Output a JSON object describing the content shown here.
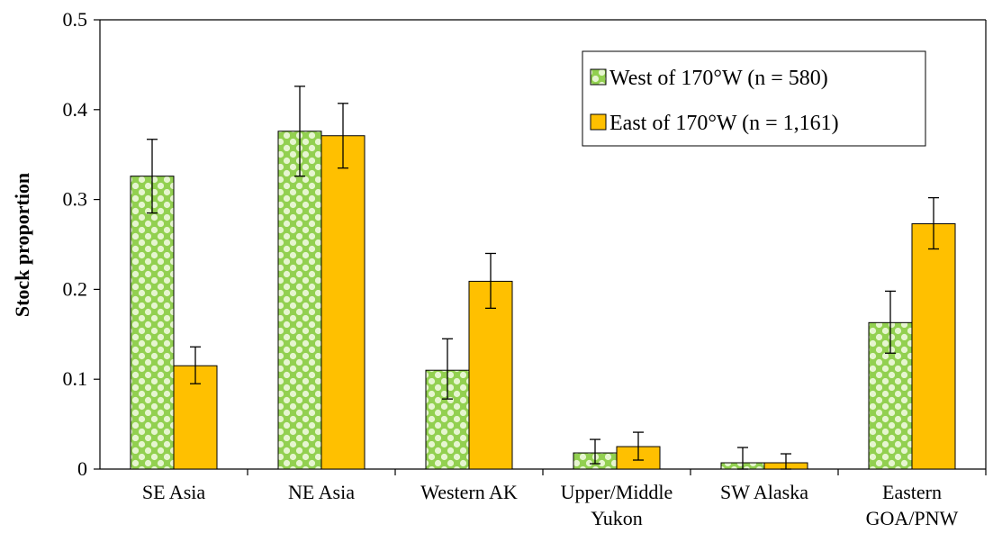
{
  "chart_data": {
    "type": "bar",
    "ylabel": "Stock  proportion",
    "xlabel": "",
    "ylim": [
      0,
      0.5
    ],
    "yticks": [
      0,
      0.1,
      0.2,
      0.3,
      0.4,
      0.5
    ],
    "ytick_labels": [
      "0",
      "0.1",
      "0.2",
      "0.3",
      "0.4",
      "0.5"
    ],
    "categories": [
      [
        "SE Asia"
      ],
      [
        "NE Asia"
      ],
      [
        "Western AK"
      ],
      [
        "Upper/Middle",
        "Yukon"
      ],
      [
        "SW Alaska"
      ],
      [
        "Eastern",
        "GOA/PNW"
      ]
    ],
    "series": [
      {
        "name": "West of 170°W (n = 580)",
        "color": "#92d050",
        "pattern": "green-dotted",
        "values": [
          0.326,
          0.376,
          0.11,
          0.018,
          0.007,
          0.163
        ],
        "err_low": [
          0.285,
          0.326,
          0.078,
          0.006,
          0.0,
          0.129
        ],
        "err_high": [
          0.367,
          0.426,
          0.145,
          0.033,
          0.024,
          0.198
        ]
      },
      {
        "name": "East of 170°W (n = 1,161)",
        "color": "#ffc000",
        "pattern": "solid",
        "values": [
          0.115,
          0.371,
          0.209,
          0.025,
          0.007,
          0.273
        ],
        "err_low": [
          0.095,
          0.335,
          0.179,
          0.01,
          0.0,
          0.245
        ],
        "err_high": [
          0.136,
          0.407,
          0.24,
          0.041,
          0.017,
          0.302
        ]
      }
    ],
    "legend": "top-right",
    "grid": false
  }
}
